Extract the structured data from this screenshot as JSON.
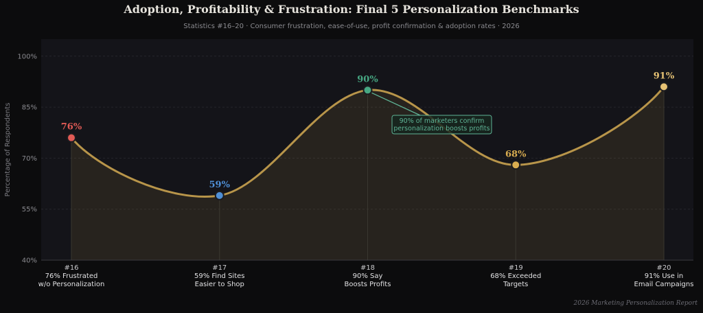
{
  "header": {
    "title": "Adoption, Profitability & Frustration: Final 5 Personalization Benchmarks",
    "subtitle": "Statistics #16–20  ·  Consumer frustration, ease-of-use, profit confirmation & adoption rates  ·  2026"
  },
  "footer": {
    "source": "2026 Marketing Personalization Report"
  },
  "chart_data": {
    "type": "area",
    "title": "Adoption, Profitability & Frustration: Final 5 Personalization Benchmarks",
    "subtitle": "Statistics #16–20  ·  Consumer frustration, ease-of-use, profit confirmation & adoption rates  ·  2026",
    "ylabel": "Percentage of Respondents",
    "xlabel": "",
    "ylim": [
      40,
      105
    ],
    "yticks": [
      40,
      55,
      70,
      85,
      100
    ],
    "ytick_labels": [
      "40%",
      "55%",
      "70%",
      "85%",
      "100%"
    ],
    "grid": true,
    "line_color": "#b8954a",
    "categories": [
      "#16\n76% Frustrated\nw/o Personalization",
      "#17\n59% Find Sites\nEasier to Shop",
      "#18\n90% Say\nBoosts Profits",
      "#19\n68% Exceeded\nTargets",
      "#20\n91% Use in\nEmail Campaigns"
    ],
    "values": [
      76,
      59,
      90,
      68,
      91
    ],
    "data_labels": [
      "76%",
      "59%",
      "90%",
      "68%",
      "91%"
    ],
    "point_colors": [
      "#e05a55",
      "#4f8fd6",
      "#47a883",
      "#d9ad50",
      "#e6c274"
    ],
    "annotation": {
      "text": "90% of marketers confirm\npersonalization boosts profits",
      "point_index": 2,
      "color": "#5fb496"
    }
  }
}
